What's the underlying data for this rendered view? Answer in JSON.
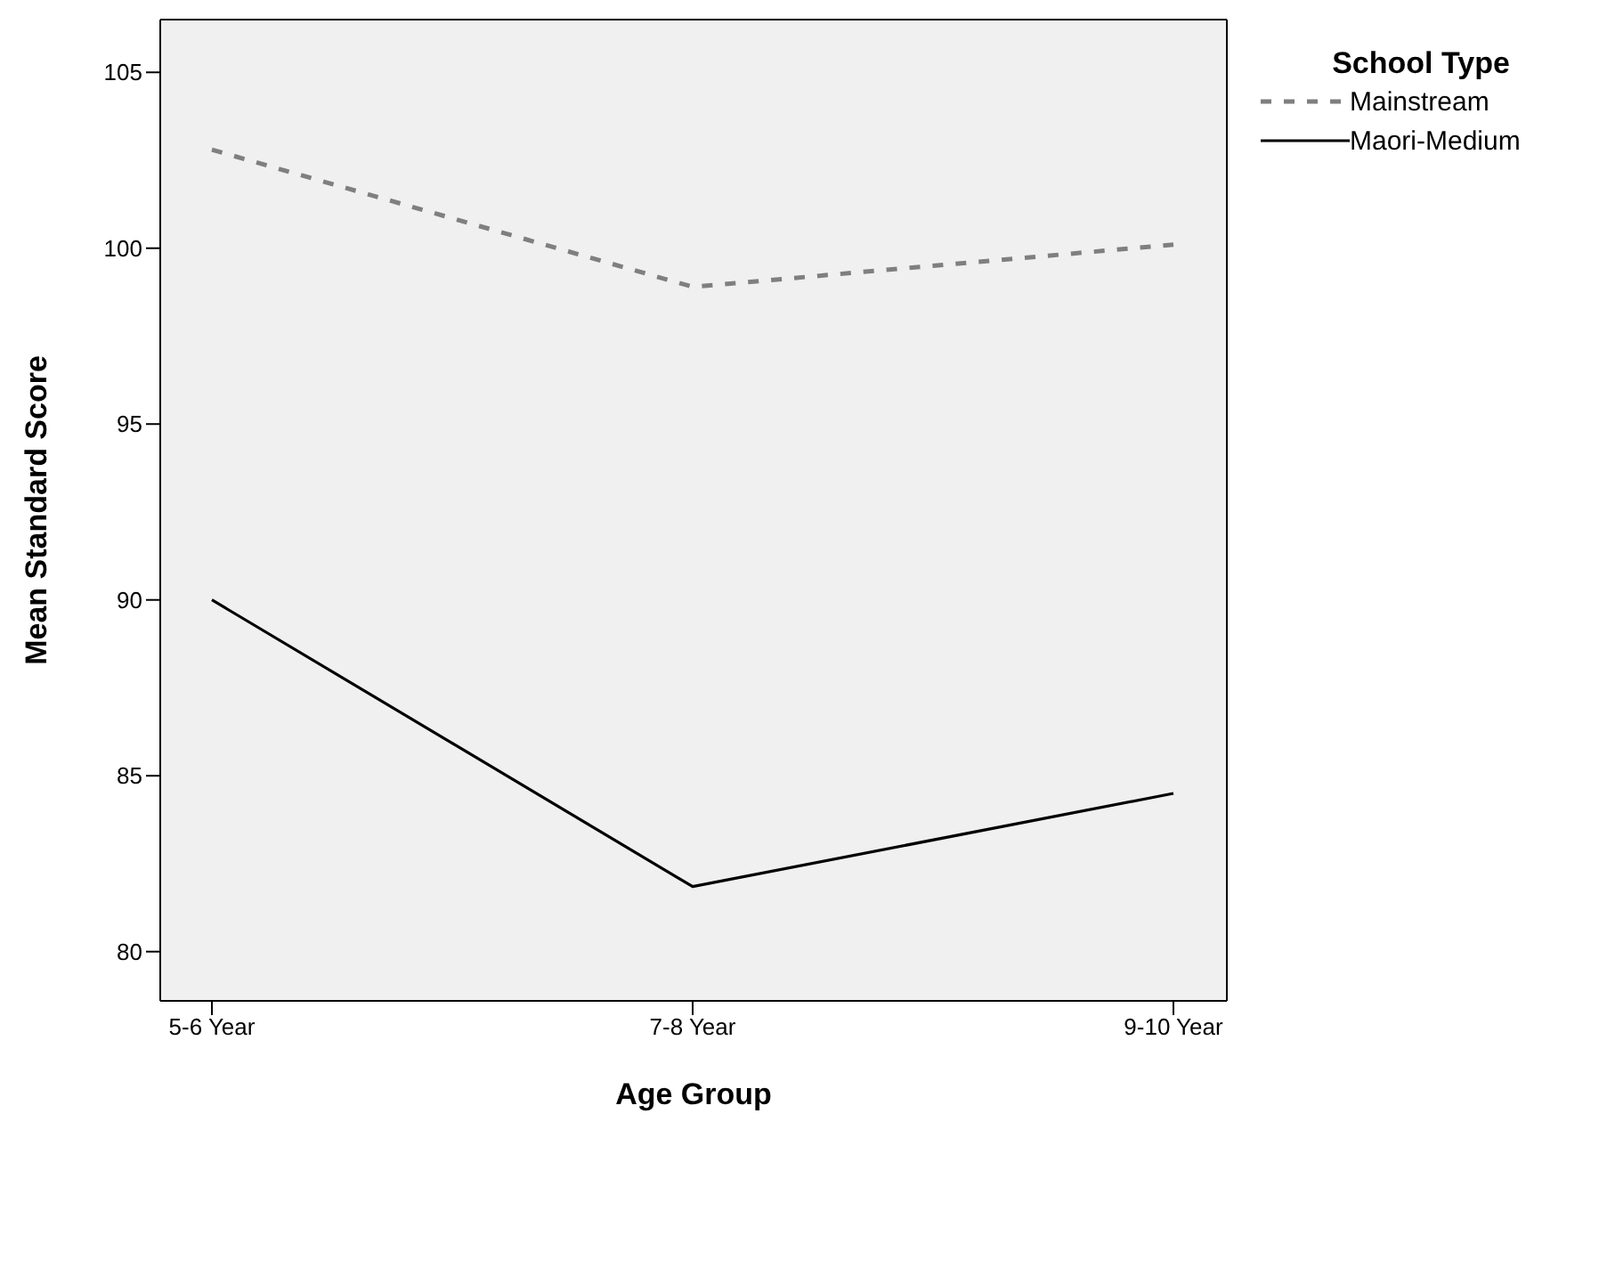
{
  "chart_data": {
    "type": "line",
    "xlabel": "Age Group",
    "ylabel": "Mean Standard Score",
    "legend_title": "School Type",
    "categories": [
      "5-6 Year",
      "7-8 Year",
      "9-10 Year"
    ],
    "series": [
      {
        "name": "Mainstream",
        "color": "#7f7f7f",
        "values": [
          102.8,
          98.9,
          100.1
        ],
        "line_style": "dashed"
      },
      {
        "name": "Maori-Medium",
        "color": "#000000",
        "values": [
          90.0,
          81.85,
          84.5
        ],
        "line_style": "solid"
      }
    ],
    "ylim": [
      78.6,
      106.5
    ],
    "yticks": [
      80,
      85,
      90,
      95,
      100,
      105
    ],
    "grid": false,
    "legend": "top right",
    "marker": "none"
  }
}
